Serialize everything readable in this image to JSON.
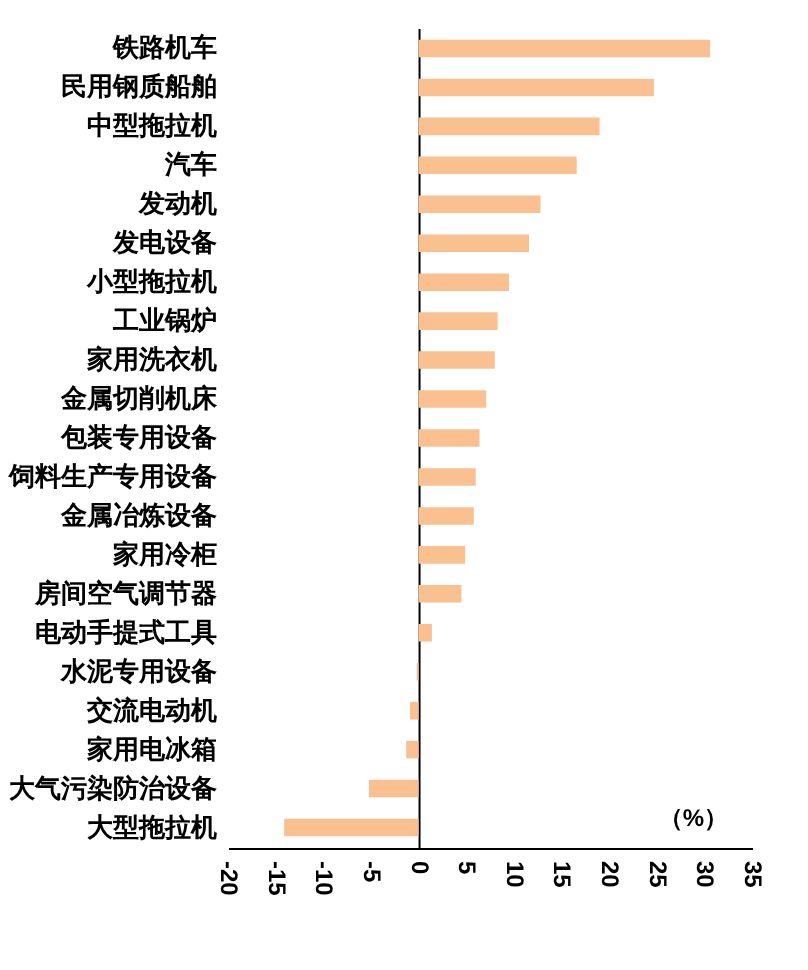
{
  "chart_data": {
    "type": "bar",
    "orientation": "horizontal",
    "categories": [
      "铁路机车",
      "民用钢质船舶",
      "中型拖拉机",
      "汽车",
      "发动机",
      "发电设备",
      "小型拖拉机",
      "工业锅炉",
      "家用洗衣机",
      "金属切削机床",
      "包装专用设备",
      "饲料生产专用设备",
      "金属冶炼设备",
      "家用冷柜",
      "房间空气调节器",
      "电动手提式工具",
      "水泥专用设备",
      "交流电动机",
      "家用电冰箱",
      "大气污染防治设备",
      "大型拖拉机"
    ],
    "values": [
      30.6,
      24.7,
      19.0,
      16.6,
      12.8,
      11.6,
      9.5,
      8.3,
      8.0,
      7.1,
      6.4,
      6.0,
      5.8,
      4.9,
      4.5,
      1.4,
      -0.2,
      -0.9,
      -1.3,
      -5.2,
      -14.1
    ],
    "color": "#fac090",
    "xlim": [
      -20,
      35
    ],
    "xticks": [
      -20,
      -15,
      -10,
      -5,
      0,
      5,
      10,
      15,
      20,
      25,
      30,
      35
    ],
    "annotations": [
      "（%）"
    ]
  }
}
